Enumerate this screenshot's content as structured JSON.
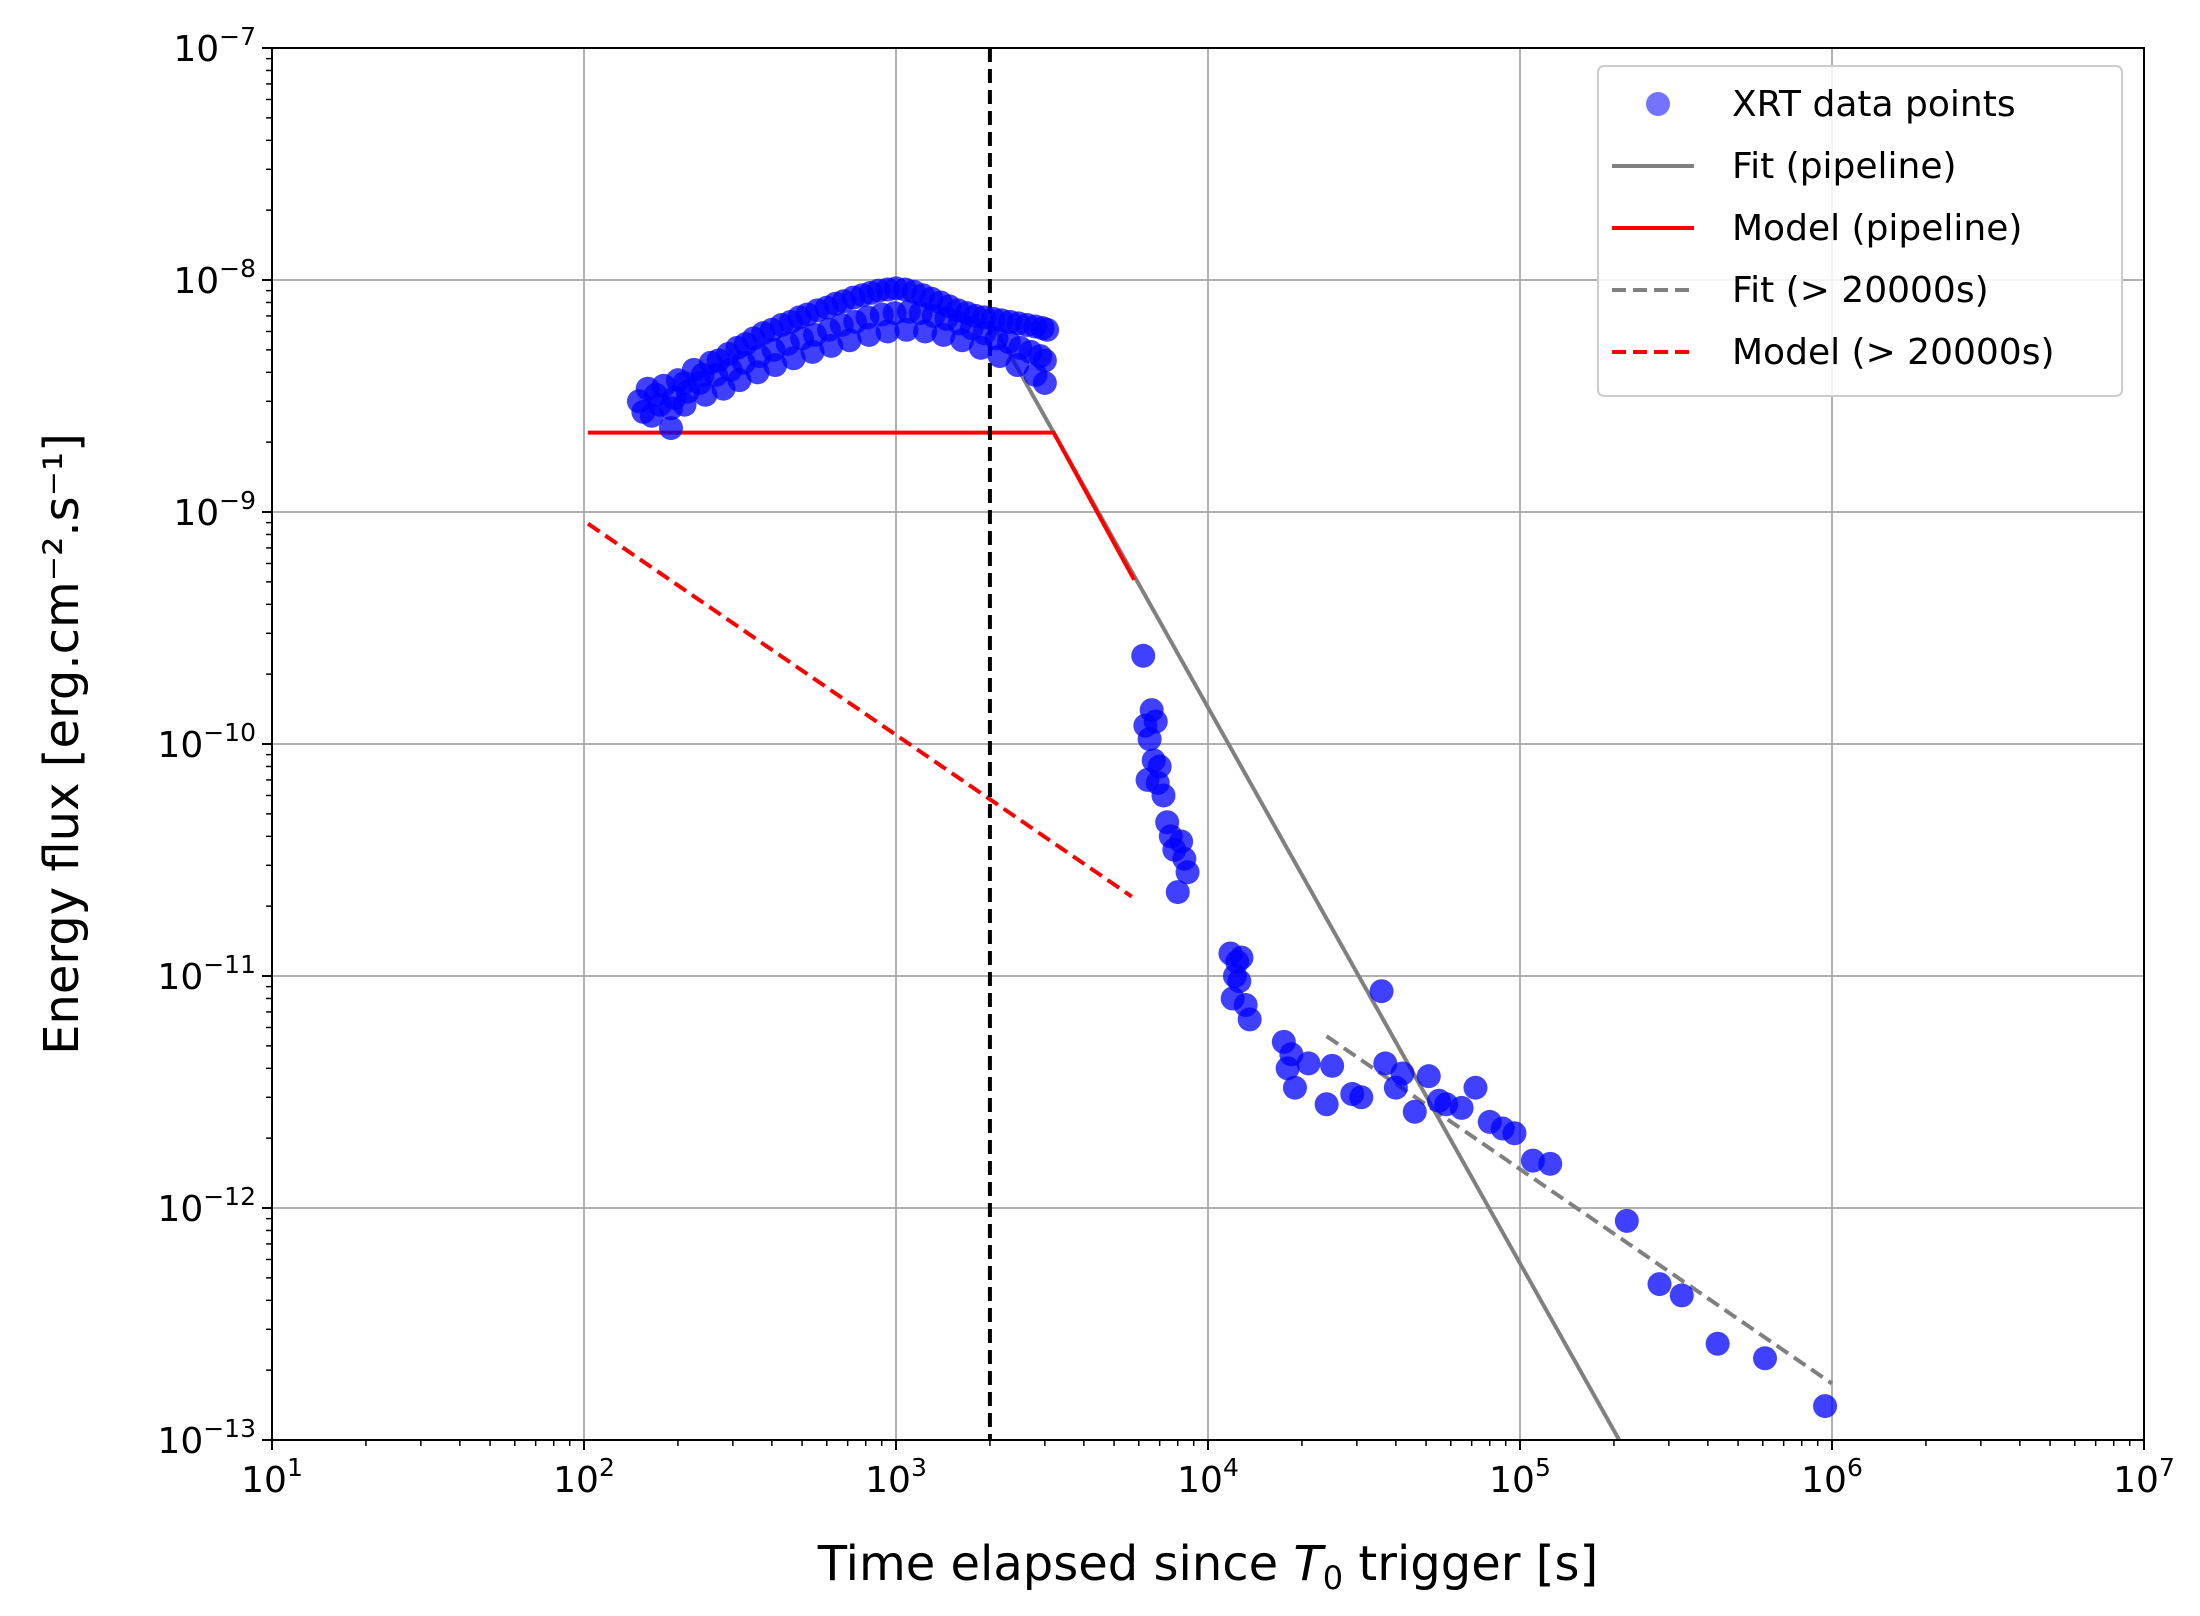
{
  "chart_data": {
    "type": "scatter",
    "xscale": "log",
    "yscale": "log",
    "xlim": [
      10,
      10000000
    ],
    "ylim": [
      1e-13,
      1e-07
    ],
    "grid": true,
    "xlabel": {
      "pre": "Time elapsed since ",
      "var": "T",
      "sub": "0",
      "post": " trigger [s]"
    },
    "ylabel": "Energy flux [erg.cm⁻².s⁻¹]",
    "x_ticks": [
      {
        "base": "10",
        "exp": "1",
        "value": 10
      },
      {
        "base": "10",
        "exp": "2",
        "value": 100
      },
      {
        "base": "10",
        "exp": "3",
        "value": 1000
      },
      {
        "base": "10",
        "exp": "4",
        "value": 10000
      },
      {
        "base": "10",
        "exp": "5",
        "value": 100000
      },
      {
        "base": "10",
        "exp": "6",
        "value": 1000000
      },
      {
        "base": "10",
        "exp": "7",
        "value": 10000000
      }
    ],
    "y_ticks": [
      {
        "base": "10",
        "exp": "−13",
        "value": 1e-13
      },
      {
        "base": "10",
        "exp": "−12",
        "value": 1e-12
      },
      {
        "base": "10",
        "exp": "−11",
        "value": 1e-11
      },
      {
        "base": "10",
        "exp": "−10",
        "value": 1e-10
      },
      {
        "base": "10",
        "exp": "−9",
        "value": 1e-09
      },
      {
        "base": "10",
        "exp": "−8",
        "value": 1e-08
      },
      {
        "base": "10",
        "exp": "−7",
        "value": 1e-07
      }
    ],
    "vline": {
      "x": 2000,
      "style": "dashed",
      "color": "#000000"
    },
    "legend": {
      "position": "top-right",
      "entries": [
        {
          "label": "XRT data points",
          "kind": "marker",
          "color": "#0000ff"
        },
        {
          "label": "Fit (pipeline)",
          "kind": "line",
          "dash": false,
          "color": "#808080"
        },
        {
          "label": "Model (pipeline)",
          "kind": "line",
          "dash": false,
          "color": "#ff0000"
        },
        {
          "label": "Fit (> 20000s)",
          "kind": "line",
          "dash": true,
          "color": "#808080"
        },
        {
          "label": "Model (> 20000s)",
          "kind": "line",
          "dash": true,
          "color": "#ff0000"
        }
      ]
    },
    "series": [
      {
        "name": "Fit (pipeline)",
        "style": "line",
        "color": "#808080",
        "x": [
          2000,
          208000
        ],
        "y": [
          6.8e-09,
          1e-13
        ]
      },
      {
        "name": "Model (pipeline)",
        "style": "line",
        "color": "#ff0000",
        "x": [
          103,
          3200,
          5800
        ],
        "y": [
          2.2e-09,
          2.2e-09,
          5.1e-10
        ]
      },
      {
        "name": "Fit (> 20000s)",
        "style": "dashed",
        "color": "#808080",
        "x": [
          24000,
          1000000
        ],
        "y": [
          5.5e-12,
          1.75e-13
        ]
      },
      {
        "name": "Model (> 20000s)",
        "style": "dashed",
        "color": "#ff0000",
        "x": [
          103,
          5700
        ],
        "y": [
          8.9e-10,
          2.2e-11
        ]
      },
      {
        "name": "XRT data points",
        "style": "scatter",
        "color": "#0000ff",
        "x": [
          150,
          160,
          170,
          180,
          190,
          200,
          210,
          225,
          240,
          255,
          270,
          290,
          310,
          330,
          350,
          375,
          400,
          430,
          460,
          490,
          520,
          560,
          600,
          640,
          680,
          730,
          780,
          830,
          880,
          940,
          1000,
          1070,
          1140,
          1220,
          1300,
          1390,
          1480,
          1580,
          1690,
          1800,
          1920,
          2050,
          2180,
          2320,
          2470,
          2630,
          2800,
          2950,
          3050,
          155,
          175,
          195,
          215,
          235,
          265,
          295,
          325,
          365,
          405,
          450,
          500,
          550,
          610,
          670,
          740,
          810,
          900,
          990,
          1100,
          1200,
          1320,
          1450,
          1600,
          1750,
          1920,
          2100,
          2300,
          2500,
          2700,
          2900,
          3000,
          165,
          190,
          210,
          245,
          280,
          315,
          360,
          410,
          470,
          540,
          620,
          710,
          820,
          940,
          1080,
          1240,
          1420,
          1630,
          1870,
          2150,
          2450,
          2800,
          3000,
          6200,
          6300,
          6400,
          6500,
          6600,
          6700,
          6800,
          6900,
          7000,
          7200,
          7400,
          7600,
          7800,
          8000,
          8200,
          8400,
          8600,
          11800,
          12000,
          12200,
          12400,
          12600,
          12800,
          13200,
          13600,
          17500,
          18000,
          18500,
          19000,
          21000,
          24000,
          25000,
          29000,
          31000,
          36000,
          37000,
          40000,
          42000,
          46000,
          51000,
          55000,
          58000,
          65000,
          72000,
          80000,
          88000,
          96000,
          110000,
          125000,
          220000,
          280000,
          330000,
          430000,
          610000,
          950000
        ],
        "y": [
          3e-09,
          3.4e-09,
          3.2e-09,
          3.5e-09,
          2.3e-09,
          3.7e-09,
          3.6e-09,
          4.1e-09,
          3.9e-09,
          4.4e-09,
          4.5e-09,
          4.8e-09,
          5.1e-09,
          5.3e-09,
          5.6e-09,
          5.9e-09,
          6.1e-09,
          6.4e-09,
          6.6e-09,
          6.9e-09,
          7.1e-09,
          7.4e-09,
          7.6e-09,
          7.9e-09,
          8.1e-09,
          8.4e-09,
          8.6e-09,
          8.8e-09,
          9e-09,
          9.1e-09,
          9.2e-09,
          9.1e-09,
          8.9e-09,
          8.6e-09,
          8.3e-09,
          8e-09,
          7.7e-09,
          7.4e-09,
          7.2e-09,
          7e-09,
          6.9e-09,
          6.8e-09,
          6.7e-09,
          6.6e-09,
          6.5e-09,
          6.4e-09,
          6.3e-09,
          6.2e-09,
          6.1e-09,
          2.7e-09,
          2.9e-09,
          3.1e-09,
          3.3e-09,
          3.6e-09,
          3.9e-09,
          4.1e-09,
          4.4e-09,
          4.7e-09,
          5e-09,
          5.3e-09,
          5.6e-09,
          5.8e-09,
          6.1e-09,
          6.4e-09,
          6.6e-09,
          6.9e-09,
          7.1e-09,
          7.2e-09,
          7.3e-09,
          7.2e-09,
          7e-09,
          6.8e-09,
          6.5e-09,
          6.2e-09,
          5.9e-09,
          5.6e-09,
          5.4e-09,
          5.1e-09,
          4.9e-09,
          4.7e-09,
          4.5e-09,
          2.6e-09,
          2.8e-09,
          2.9e-09,
          3.2e-09,
          3.4e-09,
          3.7e-09,
          4e-09,
          4.3e-09,
          4.6e-09,
          4.9e-09,
          5.2e-09,
          5.5e-09,
          5.8e-09,
          6e-09,
          6.1e-09,
          6e-09,
          5.8e-09,
          5.5e-09,
          5.1e-09,
          4.7e-09,
          4.3e-09,
          3.9e-09,
          3.6e-09,
          2.4e-10,
          1.2e-10,
          7e-11,
          1.05e-10,
          1.4e-10,
          8.5e-11,
          1.25e-10,
          6.8e-11,
          8e-11,
          6e-11,
          4.6e-11,
          4e-11,
          3.5e-11,
          2.3e-11,
          3.8e-11,
          3.2e-11,
          2.8e-11,
          1.25e-11,
          8e-12,
          1e-11,
          1.15e-11,
          9.5e-12,
          1.2e-11,
          7.5e-12,
          6.5e-12,
          5.2e-12,
          4e-12,
          4.6e-12,
          3.3e-12,
          4.2e-12,
          2.8e-12,
          4.1e-12,
          3.1e-12,
          3e-12,
          8.6e-12,
          4.2e-12,
          3.3e-12,
          3.8e-12,
          2.6e-12,
          3.7e-12,
          2.9e-12,
          2.8e-12,
          2.7e-12,
          3.3e-12,
          2.35e-12,
          2.2e-12,
          2.1e-12,
          1.6e-12,
          1.55e-12,
          8.8e-13,
          4.7e-13,
          4.2e-13,
          2.6e-13,
          2.25e-13,
          1.4e-13
        ]
      }
    ]
  }
}
